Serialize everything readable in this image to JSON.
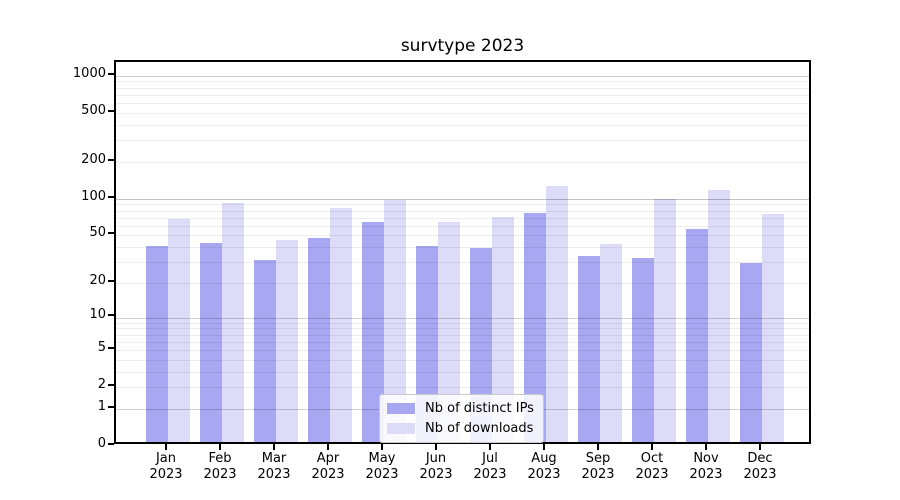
{
  "chart": {
    "title": "survtype 2023"
  },
  "legend": {
    "items": [
      {
        "label": "Nb of distinct IPs",
        "color": "#a7a7f2"
      },
      {
        "label": "Nb of downloads",
        "color": "#dcdcf8"
      }
    ]
  },
  "chart_data": {
    "type": "bar",
    "title": "survtype 2023",
    "categories": [
      "Jan",
      "Feb",
      "Mar",
      "Apr",
      "May",
      "Jun",
      "Jul",
      "Aug",
      "Sep",
      "Oct",
      "Nov",
      "Dec"
    ],
    "category_year": "2023",
    "series": [
      {
        "name": "Nb of distinct IPs",
        "color": "#a7a7f2",
        "values": [
          38,
          40,
          29,
          44,
          60,
          38,
          36,
          71,
          31,
          30,
          52,
          27
        ]
      },
      {
        "name": "Nb of downloads",
        "color": "#dcdcf8",
        "values": [
          63,
          86,
          42,
          78,
          91,
          60,
          66,
          118,
          39,
          93,
          110,
          70
        ]
      }
    ],
    "xlabel": "",
    "ylabel": "",
    "yscale": "log10(1+v)",
    "yticks": [
      0,
      1,
      2,
      5,
      10,
      20,
      50,
      100,
      200,
      500,
      1000
    ],
    "ylim": [
      0,
      1280
    ],
    "grid": "horizontal, minor and major log lines",
    "legend_position": "inside lower center"
  }
}
